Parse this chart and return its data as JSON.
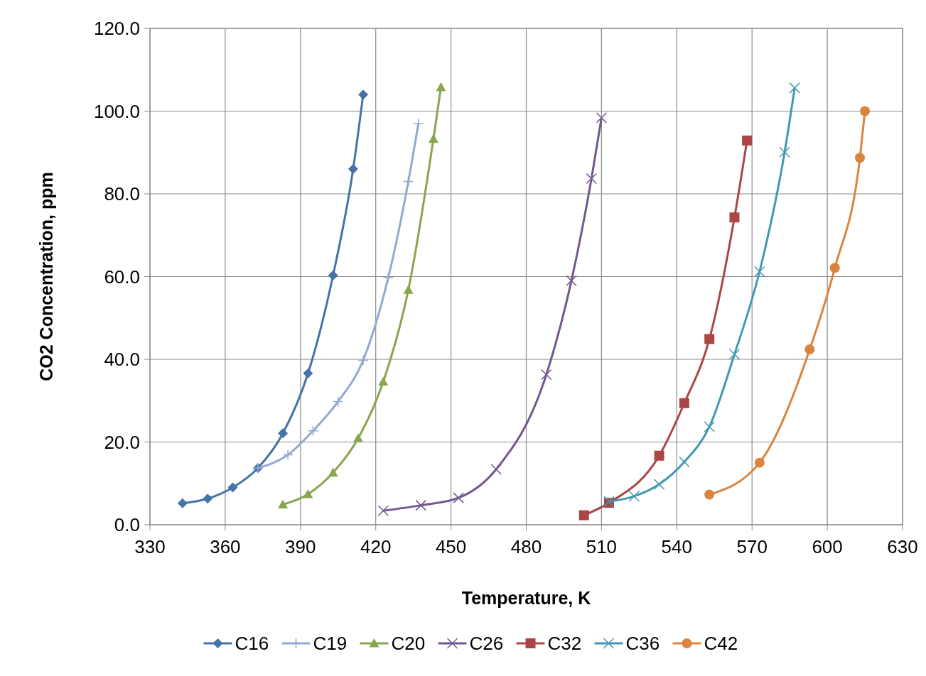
{
  "chart_data": {
    "type": "line",
    "xlabel": "Temperature, K",
    "ylabel": "CO2 Concentration, ppm",
    "xlim": [
      330,
      630
    ],
    "xticks": [
      330,
      360,
      390,
      420,
      450,
      480,
      510,
      540,
      570,
      600,
      630
    ],
    "ylim": [
      0,
      120
    ],
    "yticks": [
      {
        "value": 0,
        "label": "0.0"
      },
      {
        "value": 20,
        "label": "20.0"
      },
      {
        "value": 40,
        "label": "40.0"
      },
      {
        "value": 60,
        "label": "60.0"
      },
      {
        "value": 80,
        "label": "80.0"
      },
      {
        "value": 100,
        "label": "100.0"
      },
      {
        "value": 120,
        "label": "120.0"
      }
    ],
    "grid": true,
    "legend": "bottom",
    "line_style": "solid",
    "series": [
      {
        "name": "C16",
        "color": "#4572a7",
        "marker": "diamond",
        "x": [
          343,
          353,
          363,
          373,
          383,
          393,
          403,
          411,
          415
        ],
        "values": [
          5.2,
          6.3,
          9.0,
          13.7,
          22.1,
          36.6,
          60.3,
          86.0,
          104.0
        ]
      },
      {
        "name": "C19",
        "color": "#93a9cf",
        "marker": "plus",
        "x": [
          373,
          385,
          395,
          405,
          415,
          425,
          433,
          437
        ],
        "values": [
          13.7,
          16.9,
          22.7,
          29.8,
          39.8,
          59.8,
          83.0,
          97.0
        ]
      },
      {
        "name": "C20",
        "color": "#89a54e",
        "marker": "triangle",
        "x": [
          383,
          393,
          403,
          413,
          423,
          433,
          443,
          446
        ],
        "values": [
          4.9,
          7.4,
          12.6,
          20.9,
          34.6,
          56.8,
          93.3,
          105.8
        ]
      },
      {
        "name": "C26",
        "color": "#71588f",
        "marker": "cross",
        "x": [
          423,
          438,
          453,
          468,
          488,
          498,
          506,
          510
        ],
        "values": [
          3.4,
          4.7,
          6.5,
          13.4,
          36.3,
          59.0,
          83.7,
          98.4
        ]
      },
      {
        "name": "C32",
        "color": "#aa4643",
        "marker": "square",
        "x": [
          503,
          513,
          533,
          543,
          553,
          563,
          568
        ],
        "values": [
          2.3,
          5.3,
          16.7,
          29.4,
          44.9,
          74.3,
          92.9
        ]
      },
      {
        "name": "C36",
        "color": "#4198af",
        "marker": "cross",
        "x": [
          513,
          523,
          533,
          543,
          553,
          563,
          573,
          583,
          587
        ],
        "values": [
          5.6,
          6.9,
          9.8,
          15.2,
          23.7,
          41.2,
          61.2,
          90.1,
          105.6
        ]
      },
      {
        "name": "C42",
        "color": "#db843d",
        "marker": "circle",
        "x": [
          553,
          573,
          593,
          603,
          613,
          615
        ],
        "values": [
          7.3,
          15.0,
          42.4,
          62.1,
          88.7,
          100.0
        ]
      }
    ]
  }
}
